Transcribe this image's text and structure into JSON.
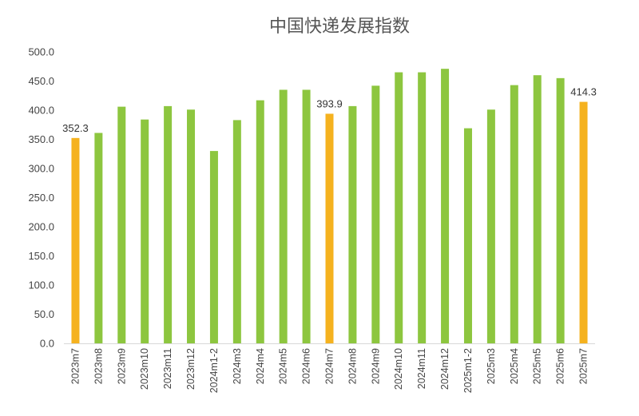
{
  "chart_data": {
    "type": "bar",
    "title": "中国快递发展指数",
    "categories": [
      "2023m7",
      "2023m8",
      "2023m9",
      "2023m10",
      "2023m11",
      "2023m12",
      "2024m1-2",
      "2024m3",
      "2024m4",
      "2024m5",
      "2024m6",
      "2024m7",
      "2024m8",
      "2024m9",
      "2024m10",
      "2024m11",
      "2024m12",
      "2025m1-2",
      "2025m3",
      "2025m4",
      "2025m5",
      "2025m6",
      "2025m7"
    ],
    "values": [
      352.3,
      361,
      406,
      384,
      407,
      401,
      330,
      383,
      417,
      435,
      435,
      393.9,
      407,
      442,
      465,
      465,
      471,
      369,
      401,
      443,
      460,
      455,
      414.3
    ],
    "highlight_indices": [
      0,
      11,
      22
    ],
    "data_labels": [
      {
        "index": 0,
        "text": "352.3"
      },
      {
        "index": 11,
        "text": "393.9"
      },
      {
        "index": 22,
        "text": "414.3"
      }
    ],
    "ylim": [
      0,
      500
    ],
    "yticks": [
      "0.0",
      "50.0",
      "100.0",
      "150.0",
      "200.0",
      "250.0",
      "300.0",
      "350.0",
      "400.0",
      "450.0",
      "500.0"
    ],
    "xlabel": "",
    "ylabel": "",
    "grid": false,
    "colors": {
      "normal": "#8DC63F",
      "highlight": "#F5B21F",
      "axis": "#d9d9d9"
    }
  }
}
